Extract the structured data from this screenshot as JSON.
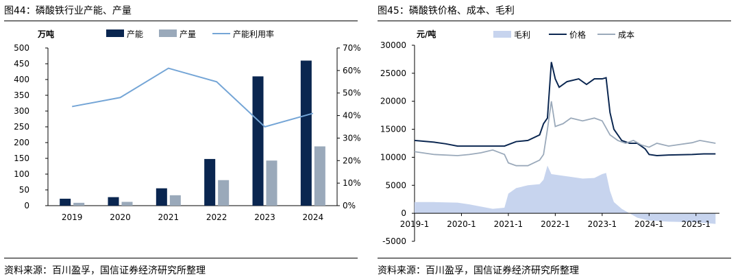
{
  "left": {
    "title": "图44：磷酸铁行业产能、产量",
    "source": "资料来源：百川盈孚，国信证券经济研究所整理",
    "chart_data": {
      "type": "bar",
      "unit_label": "万吨",
      "categories": [
        "2019",
        "2020",
        "2021",
        "2022",
        "2023",
        "2024"
      ],
      "series": [
        {
          "name": "产能",
          "kind": "bar",
          "axis": "left",
          "color": "#0a2650",
          "values": [
            22,
            27,
            55,
            148,
            410,
            460
          ]
        },
        {
          "name": "产量",
          "kind": "bar",
          "axis": "left",
          "color": "#9aa9ba",
          "values": [
            9,
            12,
            33,
            81,
            143,
            188
          ]
        },
        {
          "name": "产能利用率",
          "kind": "line",
          "axis": "right",
          "color": "#74a5d6",
          "values": [
            0.44,
            0.48,
            0.61,
            0.55,
            0.35,
            0.41
          ]
        }
      ],
      "ylim": [
        0,
        500
      ],
      "yticks": [
        "0",
        "50",
        "100",
        "150",
        "200",
        "250",
        "300",
        "350",
        "400",
        "450",
        "500"
      ],
      "y2lim": [
        0,
        0.7
      ],
      "y2ticks": [
        "0%",
        "10%",
        "20%",
        "30%",
        "40%",
        "50%",
        "60%",
        "70%"
      ],
      "legend": "top",
      "grid": false
    }
  },
  "right": {
    "title": "图45：磷酸铁价格、成本、毛利",
    "source": "资料来源：百川盈孚，国信证券经济研究所整理",
    "chart_data": {
      "type": "line",
      "unit_label": "元/吨",
      "xticks": [
        "2019-1",
        "2020-1",
        "2021-1",
        "2022-1",
        "2023-1",
        "2024-1",
        "2025-1"
      ],
      "xlim": [
        "2019-01",
        "2025-07"
      ],
      "ylim": [
        -5000,
        30000
      ],
      "yticks": [
        "-5000",
        "0",
        "5000",
        "10000",
        "15000",
        "20000",
        "25000",
        "30000"
      ],
      "legend": "top",
      "grid": false,
      "series": [
        {
          "name": "毛利",
          "kind": "area",
          "color": "#c7d4ee",
          "points": [
            [
              "2019-01",
              2000
            ],
            [
              "2019-06",
              2000
            ],
            [
              "2019-12",
              1900
            ],
            [
              "2020-03",
              1600
            ],
            [
              "2020-06",
              1200
            ],
            [
              "2020-09",
              800
            ],
            [
              "2020-12",
              1000
            ],
            [
              "2021-01",
              3500
            ],
            [
              "2021-03",
              4500
            ],
            [
              "2021-06",
              5000
            ],
            [
              "2021-09",
              5200
            ],
            [
              "2021-10",
              6000
            ],
            [
              "2021-11",
              8500
            ],
            [
              "2021-12",
              7000
            ],
            [
              "2022-02",
              6800
            ],
            [
              "2022-05",
              6500
            ],
            [
              "2022-08",
              6200
            ],
            [
              "2022-11",
              6300
            ],
            [
              "2023-01",
              7000
            ],
            [
              "2023-02",
              7200
            ],
            [
              "2023-03",
              4000
            ],
            [
              "2023-04",
              2000
            ],
            [
              "2023-06",
              800
            ],
            [
              "2023-08",
              0
            ],
            [
              "2023-10",
              -800
            ],
            [
              "2024-01",
              -1300
            ],
            [
              "2024-06",
              -1500
            ],
            [
              "2025-01",
              -1600
            ],
            [
              "2025-06",
              -1900
            ]
          ]
        },
        {
          "name": "价格",
          "kind": "line",
          "color": "#0a2650",
          "points": [
            [
              "2019-01",
              13000
            ],
            [
              "2019-06",
              12700
            ],
            [
              "2019-09",
              12400
            ],
            [
              "2019-12",
              12000
            ],
            [
              "2020-06",
              12000
            ],
            [
              "2020-12",
              12000
            ],
            [
              "2021-03",
              12800
            ],
            [
              "2021-06",
              13000
            ],
            [
              "2021-09",
              14000
            ],
            [
              "2021-10",
              16000
            ],
            [
              "2021-11",
              17000
            ],
            [
              "2021-12",
              27000
            ],
            [
              "2022-01",
              24000
            ],
            [
              "2022-02",
              22500
            ],
            [
              "2022-04",
              23500
            ],
            [
              "2022-07",
              24000
            ],
            [
              "2022-09",
              23000
            ],
            [
              "2022-11",
              24000
            ],
            [
              "2023-01",
              24000
            ],
            [
              "2023-02",
              24200
            ],
            [
              "2023-03",
              18000
            ],
            [
              "2023-04",
              15000
            ],
            [
              "2023-06",
              13000
            ],
            [
              "2023-08",
              12500
            ],
            [
              "2023-10",
              12500
            ],
            [
              "2023-12",
              11500
            ],
            [
              "2024-01",
              10500
            ],
            [
              "2024-03",
              10300
            ],
            [
              "2024-06",
              10400
            ],
            [
              "2024-12",
              10500
            ],
            [
              "2025-03",
              10600
            ],
            [
              "2025-06",
              10600
            ]
          ]
        },
        {
          "name": "成本",
          "kind": "line",
          "color": "#9aa9ba",
          "points": [
            [
              "2019-01",
              11000
            ],
            [
              "2019-06",
              10500
            ],
            [
              "2019-12",
              10300
            ],
            [
              "2020-03",
              10500
            ],
            [
              "2020-06",
              10800
            ],
            [
              "2020-09",
              11300
            ],
            [
              "2020-12",
              10500
            ],
            [
              "2021-01",
              9000
            ],
            [
              "2021-03",
              8500
            ],
            [
              "2021-06",
              8500
            ],
            [
              "2021-09",
              9500
            ],
            [
              "2021-10",
              10500
            ],
            [
              "2021-11",
              15000
            ],
            [
              "2021-12",
              20000
            ],
            [
              "2022-01",
              15500
            ],
            [
              "2022-03",
              16000
            ],
            [
              "2022-05",
              17000
            ],
            [
              "2022-08",
              16500
            ],
            [
              "2022-11",
              17000
            ],
            [
              "2023-01",
              16500
            ],
            [
              "2023-03",
              14000
            ],
            [
              "2023-05",
              13000
            ],
            [
              "2023-07",
              12500
            ],
            [
              "2023-09",
              13000
            ],
            [
              "2023-11",
              12200
            ],
            [
              "2024-01",
              11800
            ],
            [
              "2024-03",
              12500
            ],
            [
              "2024-06",
              12000
            ],
            [
              "2024-09",
              12300
            ],
            [
              "2024-12",
              12600
            ],
            [
              "2025-02",
              13000
            ],
            [
              "2025-06",
              12500
            ]
          ]
        }
      ]
    }
  }
}
